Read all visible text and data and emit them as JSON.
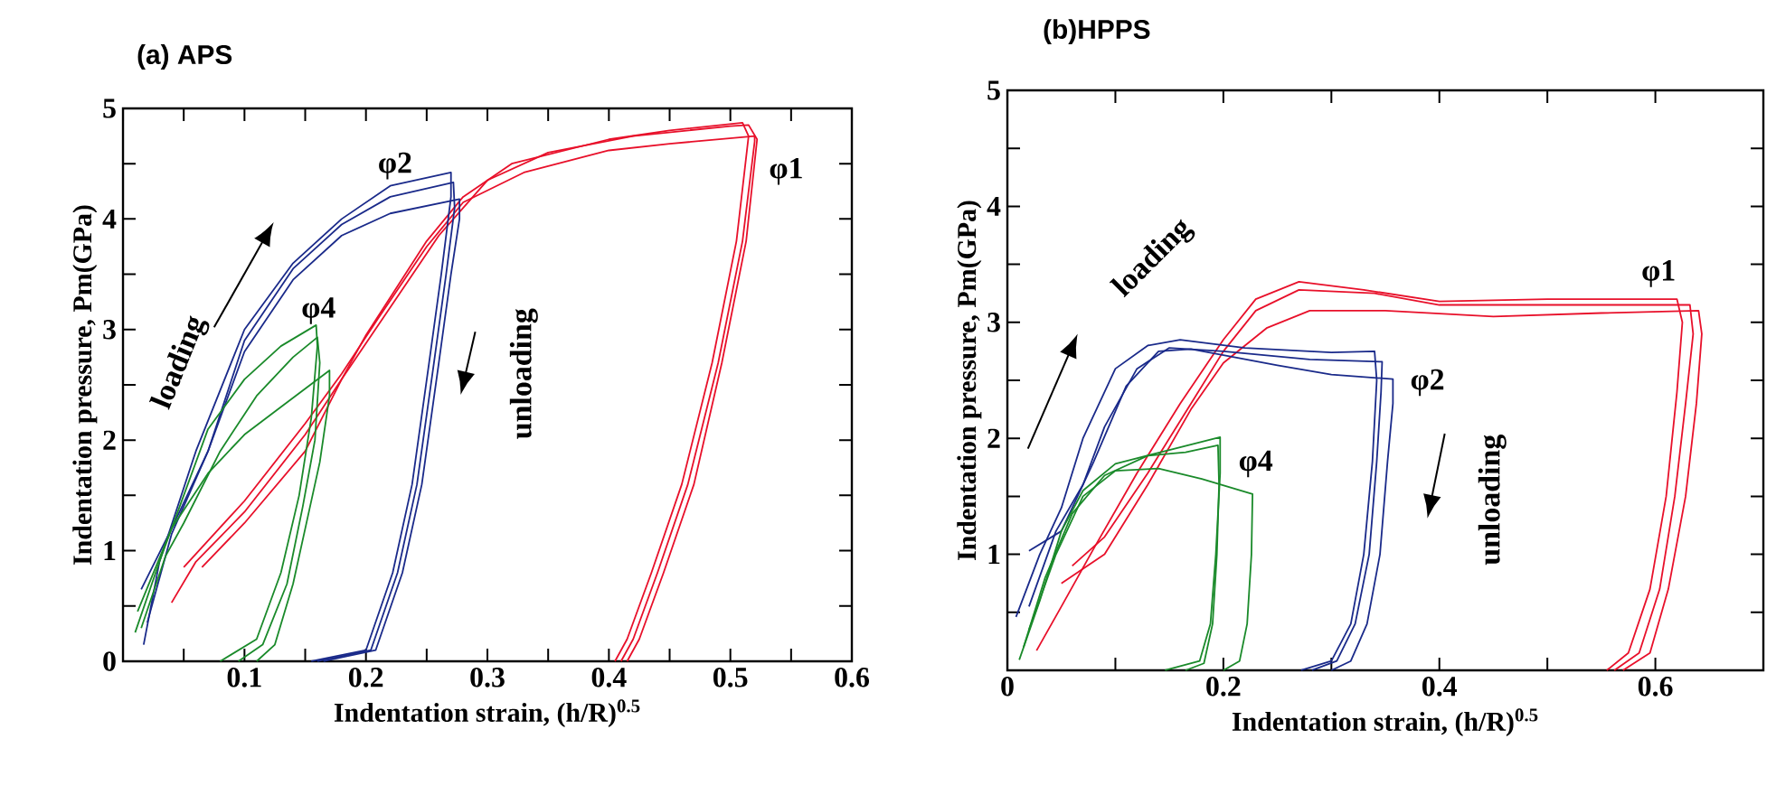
{
  "chart_data": [
    {
      "type": "line",
      "title": "(a) APS",
      "xlabel": "Indentation strain, (h/R)$^{0.5}$",
      "ylabel": "Indentation pressure, Pm(GPa)",
      "xlim": [
        0,
        0.6
      ],
      "ylim": [
        0,
        5
      ],
      "xticks": [
        {
          "value": 0,
          "label": null
        },
        {
          "value": 0.05,
          "label": null
        },
        0.1,
        {
          "value": 0.15,
          "label": null
        },
        0.2,
        {
          "value": 0.25,
          "label": null
        },
        0.3,
        {
          "value": 0.35,
          "label": null
        },
        0.4,
        {
          "value": 0.45,
          "label": null
        },
        0.5,
        {
          "value": 0.55,
          "label": null
        },
        0.6
      ],
      "yticks": [
        0,
        {
          "value": 0.5,
          "label": null
        },
        1,
        {
          "value": 1.5,
          "label": null
        },
        2,
        {
          "value": 2.5,
          "label": null
        },
        3,
        {
          "value": 3.5,
          "label": null
        },
        4,
        {
          "value": 4.5,
          "label": null
        },
        5
      ],
      "series": [
        {
          "color": "#e8102a",
          "x": [
            0.04,
            0.06,
            0.1,
            0.15,
            0.18,
            0.2,
            0.25,
            0.28,
            0.32,
            0.4,
            0.45,
            0.51,
            0.515,
            0.505,
            0.485,
            0.46,
            0.435,
            0.415,
            0.405
          ],
          "values": [
            0.53,
            0.9,
            1.35,
            2.05,
            2.55,
            2.95,
            3.8,
            4.2,
            4.5,
            4.72,
            4.8,
            4.87,
            4.75,
            3.8,
            2.7,
            1.6,
            0.8,
            0.2,
            0
          ]
        },
        {
          "color": "#e8102a",
          "x": [
            0.05,
            0.1,
            0.15,
            0.18,
            0.21,
            0.25,
            0.28,
            0.33,
            0.4,
            0.45,
            0.52,
            0.52,
            0.51,
            0.49,
            0.465,
            0.44,
            0.42,
            0.41
          ],
          "values": [
            0.85,
            1.45,
            2.15,
            2.6,
            3.1,
            3.75,
            4.15,
            4.42,
            4.62,
            4.68,
            4.75,
            4.7,
            3.8,
            2.7,
            1.6,
            0.8,
            0.2,
            0
          ]
        },
        {
          "color": "#e8102a",
          "x": [
            0.065,
            0.1,
            0.15,
            0.18,
            0.22,
            0.26,
            0.3,
            0.35,
            0.42,
            0.5,
            0.515,
            0.522,
            0.513,
            0.493,
            0.47,
            0.445,
            0.425,
            0.415
          ],
          "values": [
            0.85,
            1.25,
            1.9,
            2.55,
            3.2,
            3.85,
            4.35,
            4.6,
            4.75,
            4.84,
            4.85,
            4.72,
            3.8,
            2.7,
            1.6,
            0.8,
            0.2,
            0
          ]
        },
        {
          "color": "#1a2a8a",
          "x": [
            0.017,
            0.03,
            0.06,
            0.1,
            0.14,
            0.18,
            0.22,
            0.27,
            0.27,
            0.262,
            0.252,
            0.238,
            0.222,
            0.2,
            0.155
          ],
          "values": [
            0.15,
            0.9,
            1.9,
            3.0,
            3.6,
            4.0,
            4.3,
            4.42,
            4.2,
            3.5,
            2.7,
            1.6,
            0.8,
            0.1,
            0
          ]
        },
        {
          "color": "#1a2a8a",
          "x": [
            0.02,
            0.04,
            0.07,
            0.1,
            0.14,
            0.18,
            0.22,
            0.272,
            0.273,
            0.266,
            0.256,
            0.242,
            0.226,
            0.204,
            0.16
          ],
          "values": [
            0.35,
            1.15,
            1.9,
            2.9,
            3.55,
            3.95,
            4.2,
            4.33,
            4.1,
            3.5,
            2.7,
            1.6,
            0.8,
            0.1,
            0
          ]
        },
        {
          "color": "#1a2a8a",
          "x": [
            0.015,
            0.04,
            0.07,
            0.1,
            0.14,
            0.18,
            0.22,
            0.277,
            0.277,
            0.27,
            0.26,
            0.246,
            0.23,
            0.208,
            0.165
          ],
          "values": [
            0.65,
            1.2,
            1.9,
            2.8,
            3.45,
            3.85,
            4.05,
            4.18,
            4.0,
            3.5,
            2.7,
            1.6,
            0.8,
            0.1,
            0
          ]
        },
        {
          "color": "#1a8a2a",
          "x": [
            0.01,
            0.03,
            0.05,
            0.07,
            0.1,
            0.13,
            0.159,
            0.16,
            0.155,
            0.145,
            0.13,
            0.11,
            0.08
          ],
          "values": [
            0.26,
            0.9,
            1.5,
            2.1,
            2.55,
            2.85,
            3.04,
            2.85,
            2.2,
            1.5,
            0.8,
            0.2,
            0
          ]
        },
        {
          "color": "#1a8a2a",
          "x": [
            0.015,
            0.035,
            0.05,
            0.08,
            0.11,
            0.14,
            0.16,
            0.162,
            0.158,
            0.148,
            0.135,
            0.115,
            0.095
          ],
          "values": [
            0.3,
            0.95,
            1.25,
            1.9,
            2.4,
            2.75,
            2.93,
            2.7,
            2.0,
            1.4,
            0.7,
            0.15,
            0
          ]
        },
        {
          "color": "#1a8a2a",
          "x": [
            0.012,
            0.04,
            0.07,
            0.1,
            0.13,
            0.17,
            0.17,
            0.162,
            0.15,
            0.14,
            0.125,
            0.11
          ],
          "values": [
            0.45,
            1.2,
            1.7,
            2.05,
            2.3,
            2.63,
            2.4,
            1.8,
            1.2,
            0.7,
            0.15,
            0
          ]
        }
      ],
      "annotations": [
        "φ1",
        "φ2",
        "φ4",
        "loading",
        "unloading"
      ]
    },
    {
      "type": "line",
      "title": "(b)HPPS",
      "xlabel": "Indentation strain, (h/R)$^{0.5}$",
      "ylabel": "Indentation pressure, Pm(GPa)",
      "xlim": [
        0,
        0.7
      ],
      "ylim": [
        0,
        5
      ],
      "xticks": [
        0,
        {
          "value": 0.1,
          "label": null
        },
        0.2,
        {
          "value": 0.3,
          "label": null
        },
        0.4,
        {
          "value": 0.5,
          "label": null
        },
        0.6
      ],
      "yticks": [
        {
          "value": 0,
          "label": null
        },
        {
          "value": 0.5,
          "label": null
        },
        1,
        {
          "value": 1.5,
          "label": null
        },
        2,
        {
          "value": 2.5,
          "label": null
        },
        3,
        {
          "value": 3.5,
          "label": null
        },
        4,
        {
          "value": 4.5,
          "label": null
        },
        5
      ],
      "series": [
        {
          "color": "#e8102a",
          "x": [
            0.027,
            0.05,
            0.08,
            0.12,
            0.16,
            0.2,
            0.23,
            0.27,
            0.33,
            0.4,
            0.5,
            0.62,
            0.625,
            0.62,
            0.61,
            0.595,
            0.575,
            0.555
          ],
          "values": [
            0.17,
            0.55,
            1.05,
            1.7,
            2.3,
            2.85,
            3.2,
            3.35,
            3.28,
            3.18,
            3.2,
            3.2,
            3.0,
            2.4,
            1.5,
            0.7,
            0.15,
            0
          ]
        },
        {
          "color": "#e8102a",
          "x": [
            0.06,
            0.09,
            0.13,
            0.17,
            0.2,
            0.23,
            0.27,
            0.34,
            0.4,
            0.5,
            0.632,
            0.635,
            0.628,
            0.618,
            0.604,
            0.585,
            0.562
          ],
          "values": [
            0.9,
            1.15,
            1.7,
            2.3,
            2.75,
            3.1,
            3.28,
            3.25,
            3.15,
            3.15,
            3.15,
            2.9,
            2.3,
            1.5,
            0.7,
            0.15,
            0
          ]
        },
        {
          "color": "#e8102a",
          "x": [
            0.05,
            0.09,
            0.13,
            0.17,
            0.2,
            0.24,
            0.28,
            0.35,
            0.45,
            0.55,
            0.64,
            0.643,
            0.638,
            0.628,
            0.612,
            0.595,
            0.57
          ],
          "values": [
            0.75,
            1.0,
            1.6,
            2.25,
            2.65,
            2.95,
            3.1,
            3.1,
            3.05,
            3.08,
            3.1,
            2.9,
            2.3,
            1.5,
            0.7,
            0.15,
            0
          ]
        },
        {
          "color": "#1a2a8a",
          "x": [
            0.008,
            0.03,
            0.05,
            0.07,
            0.1,
            0.13,
            0.16,
            0.22,
            0.3,
            0.34,
            0.342,
            0.338,
            0.33,
            0.318,
            0.3,
            0.272
          ],
          "values": [
            0.46,
            1.0,
            1.4,
            2.0,
            2.6,
            2.8,
            2.85,
            2.78,
            2.74,
            2.75,
            2.5,
            1.8,
            1.0,
            0.4,
            0.08,
            0
          ]
        },
        {
          "color": "#1a2a8a",
          "x": [
            0.02,
            0.045,
            0.07,
            0.09,
            0.12,
            0.15,
            0.2,
            0.28,
            0.347,
            0.346,
            0.342,
            0.335,
            0.322,
            0.305,
            0.282
          ],
          "values": [
            0.55,
            1.2,
            1.6,
            2.1,
            2.6,
            2.78,
            2.75,
            2.68,
            2.66,
            2.4,
            1.8,
            1.0,
            0.4,
            0.08,
            0
          ]
        },
        {
          "color": "#1a2a8a",
          "x": [
            0.02,
            0.05,
            0.08,
            0.11,
            0.14,
            0.17,
            0.25,
            0.3,
            0.357,
            0.357,
            0.352,
            0.345,
            0.333,
            0.318,
            0.3
          ],
          "values": [
            1.03,
            1.2,
            1.8,
            2.45,
            2.75,
            2.77,
            2.63,
            2.55,
            2.51,
            2.3,
            1.8,
            1.0,
            0.4,
            0.08,
            0
          ]
        },
        {
          "color": "#1a8a2a",
          "x": [
            0.011,
            0.03,
            0.05,
            0.07,
            0.1,
            0.15,
            0.197,
            0.197,
            0.193,
            0.188,
            0.178,
            0.146
          ],
          "values": [
            0.09,
            0.6,
            1.2,
            1.55,
            1.78,
            1.9,
            2.01,
            1.7,
            1.0,
            0.4,
            0.08,
            0
          ]
        },
        {
          "color": "#1a8a2a",
          "x": [
            0.015,
            0.035,
            0.06,
            0.09,
            0.13,
            0.165,
            0.195,
            0.196,
            0.194,
            0.19,
            0.182,
            0.165
          ],
          "values": [
            0.2,
            0.8,
            1.35,
            1.68,
            1.85,
            1.88,
            1.94,
            1.6,
            1.0,
            0.4,
            0.06,
            0
          ]
        },
        {
          "color": "#1a8a2a",
          "x": [
            0.02,
            0.045,
            0.07,
            0.1,
            0.14,
            0.18,
            0.227,
            0.226,
            0.222,
            0.215,
            0.2
          ],
          "values": [
            0.35,
            1.0,
            1.5,
            1.72,
            1.74,
            1.65,
            1.52,
            1.0,
            0.4,
            0.08,
            0
          ]
        }
      ],
      "annotations": [
        "φ1",
        "φ2",
        "φ4",
        "loading",
        "unloading"
      ]
    }
  ]
}
